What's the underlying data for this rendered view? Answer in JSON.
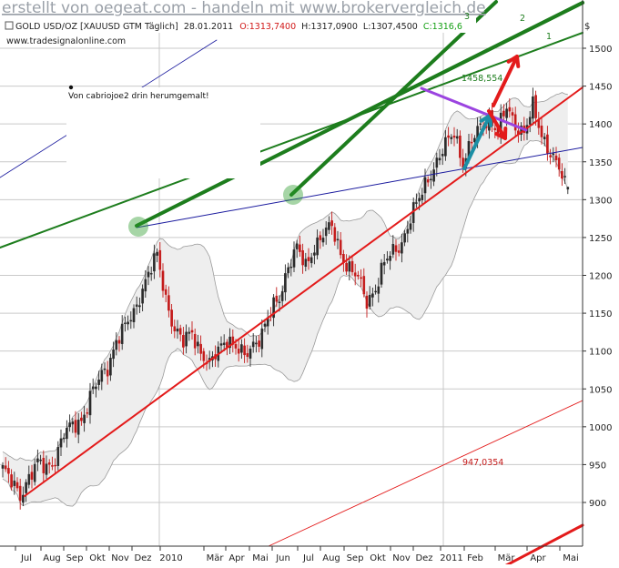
{
  "watermark": "erstellt von oegeat.com - handeln mit www.brokervergleich.de",
  "header": {
    "instrument": "GOLD USD/OZ [XAUUSD GTM  Täglich]",
    "date": "28.01.2011",
    "open": "O:1313,7400",
    "high": "H:1317,0900",
    "low": "L:1307,4500",
    "close": "C:1316,6"
  },
  "source": "www.tradesignalonline.com",
  "note": "Von cabriojoe2 drin herumgemalt!",
  "currency_symbol": "$",
  "colors": {
    "candle_up": "#2a2a2a",
    "candle_down": "#c41a1a",
    "bollinger_fill": "#eeeeee",
    "bollinger_line": "#9a9a9a",
    "trend_green": "#1d7d1d",
    "channel_red": "#e31b1b",
    "resistance_purple": "#9b44e0",
    "arrow_teal": "#1b8fa5",
    "blue_line": "#1a1a9e",
    "grid": "#c9c9c9"
  },
  "chart_data": {
    "type": "candlestick",
    "instrument": "GOLD USD/OZ",
    "timeframe": "Täglich",
    "last_bar": {
      "date": "28.01.2011",
      "open": 1313.74,
      "high": 1317.09,
      "low": 1307.45,
      "close": 1316.6
    },
    "y_ticks": [
      900,
      950,
      1000,
      1050,
      1100,
      1150,
      1200,
      1250,
      1300,
      1350,
      1400,
      1450,
      1500
    ],
    "ylim": [
      857,
      1535
    ],
    "x_ticks": [
      "Jul",
      "Aug",
      "Sep",
      "Okt",
      "Nov",
      "Dez",
      "2010",
      "Mär",
      "Apr",
      "Mai",
      "Jun",
      "Jul",
      "Aug",
      "Sep",
      "Okt",
      "Nov",
      "Dez",
      "2011",
      "Feb",
      "Mär",
      "Apr",
      "Mai"
    ],
    "x_range_months": [
      "Jul 2009",
      "Mai 2011"
    ],
    "close_path": [
      [
        0,
        945
      ],
      [
        3,
        925
      ],
      [
        6,
        910
      ],
      [
        9,
        935
      ],
      [
        12,
        950
      ],
      [
        15,
        945
      ],
      [
        18,
        960
      ],
      [
        21,
        990
      ],
      [
        24,
        1000
      ],
      [
        27,
        1010
      ],
      [
        30,
        1040
      ],
      [
        33,
        1060
      ],
      [
        36,
        1080
      ],
      [
        39,
        1115
      ],
      [
        42,
        1130
      ],
      [
        45,
        1150
      ],
      [
        48,
        1185
      ],
      [
        51,
        1210
      ],
      [
        53,
        1224
      ],
      [
        56,
        1170
      ],
      [
        59,
        1130
      ],
      [
        62,
        1110
      ],
      [
        65,
        1125
      ],
      [
        68,
        1100
      ],
      [
        71,
        1080
      ],
      [
        74,
        1100
      ],
      [
        77,
        1120
      ],
      [
        80,
        1105
      ],
      [
        83,
        1090
      ],
      [
        86,
        1110
      ],
      [
        89,
        1125
      ],
      [
        92,
        1150
      ],
      [
        95,
        1170
      ],
      [
        98,
        1215
      ],
      [
        101,
        1235
      ],
      [
        104,
        1210
      ],
      [
        107,
        1240
      ],
      [
        110,
        1255
      ],
      [
        113,
        1262
      ],
      [
        116,
        1230
      ],
      [
        119,
        1210
      ],
      [
        122,
        1195
      ],
      [
        125,
        1165
      ],
      [
        128,
        1185
      ],
      [
        131,
        1215
      ],
      [
        134,
        1230
      ],
      [
        137,
        1245
      ],
      [
        140,
        1275
      ],
      [
        143,
        1300
      ],
      [
        146,
        1330
      ],
      [
        149,
        1350
      ],
      [
        152,
        1370
      ],
      [
        155,
        1390
      ],
      [
        158,
        1350
      ],
      [
        161,
        1375
      ],
      [
        164,
        1395
      ],
      [
        167,
        1410
      ],
      [
        170,
        1390
      ],
      [
        173,
        1420
      ],
      [
        176,
        1400
      ],
      [
        179,
        1390
      ],
      [
        182,
        1420
      ],
      [
        185,
        1385
      ],
      [
        188,
        1365
      ],
      [
        191,
        1340
      ],
      [
        193,
        1316.6
      ]
    ],
    "annotations": [
      {
        "label": "1458,554",
        "color": "#1d7d1d"
      },
      {
        "label": "947,0354",
        "color": "#c41a1a"
      },
      {
        "label": "1",
        "color": "#1d7d1d"
      },
      {
        "label": "2",
        "color": "#1d7d1d"
      },
      {
        "label": "3",
        "color": "#1d7d1d"
      }
    ]
  }
}
